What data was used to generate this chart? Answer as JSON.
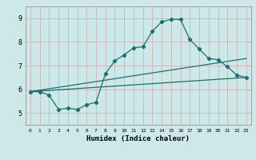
{
  "title": "",
  "xlabel": "Humidex (Indice chaleur)",
  "background_color": "#cce8e8",
  "grid_color": "#b0c8c8",
  "line_color": "#1a7070",
  "xlim": [
    -0.5,
    23.5
  ],
  "ylim": [
    4.5,
    9.5
  ],
  "xticks": [
    0,
    1,
    2,
    3,
    4,
    5,
    6,
    7,
    8,
    9,
    10,
    11,
    12,
    13,
    14,
    15,
    16,
    17,
    18,
    19,
    20,
    21,
    22,
    23
  ],
  "yticks": [
    5,
    6,
    7,
    8,
    9
  ],
  "line1_x": [
    0,
    1,
    2,
    3,
    4,
    5,
    6,
    7,
    8,
    9,
    10,
    11,
    12,
    13,
    14,
    15,
    16,
    17,
    18,
    19,
    20,
    21,
    22,
    23
  ],
  "line1_y": [
    5.9,
    5.9,
    5.75,
    5.15,
    5.2,
    5.15,
    5.35,
    5.45,
    6.65,
    7.2,
    7.45,
    7.75,
    7.8,
    8.45,
    8.85,
    8.95,
    8.95,
    8.1,
    7.7,
    7.3,
    7.25,
    6.95,
    6.6,
    6.5
  ],
  "line2_x": [
    0,
    23
  ],
  "line2_y": [
    5.9,
    7.3
  ],
  "line3_x": [
    0,
    23
  ],
  "line3_y": [
    5.9,
    6.5
  ]
}
